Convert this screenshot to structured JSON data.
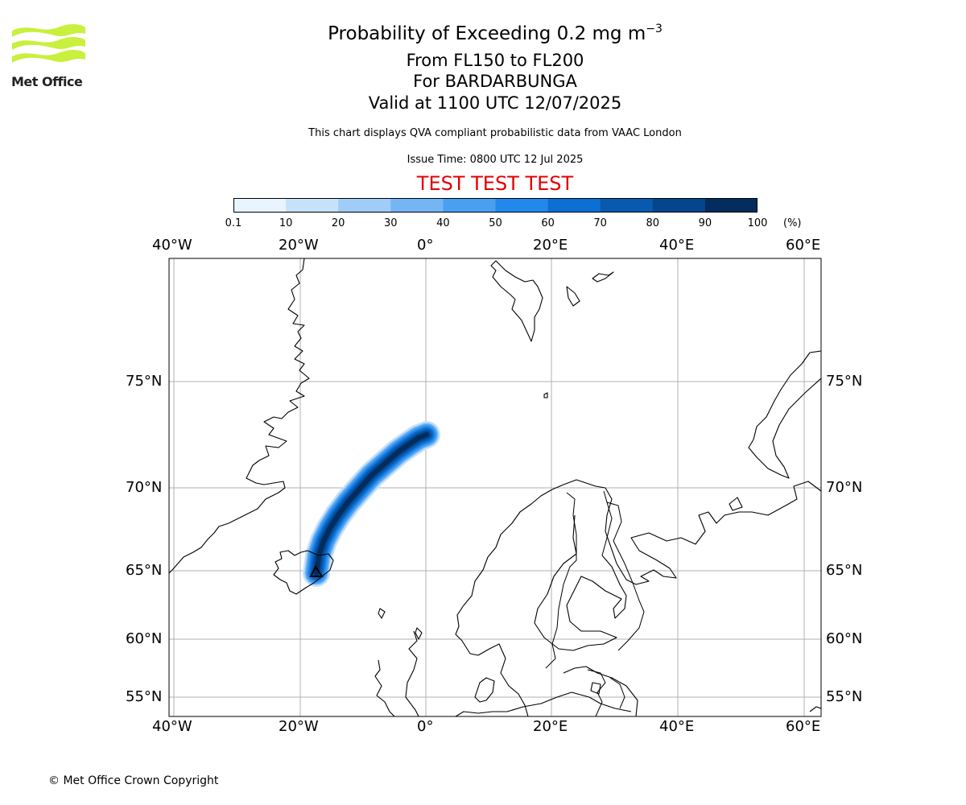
{
  "logo": {
    "text": "Met Office",
    "color": "#c8f03c"
  },
  "title": {
    "main": "Probability of Exceeding 0.2 mg m",
    "main_exponent": "−3",
    "level": "From FL150 to FL200",
    "volcano": "For BARDARBUNGA",
    "valid": "Valid at 1100 UTC 12/07/2025"
  },
  "subtitle": "This chart displays QVA compliant probabilistic data from VAAC London",
  "issue_time": "Issue Time: 0800 UTC 12 Jul 2025",
  "test_banner": "TEST TEST TEST",
  "colorbar": {
    "ticks": [
      "0.1",
      "10",
      "20",
      "30",
      "40",
      "50",
      "60",
      "70",
      "80",
      "90",
      "100"
    ],
    "unit": "(%)",
    "colors": [
      "#e8f4ff",
      "#c6e2fb",
      "#9fcdf7",
      "#74b6f4",
      "#4aa0f0",
      "#2388ec",
      "#0c6fd3",
      "#075ab0",
      "#04468e",
      "#022d5e"
    ]
  },
  "map": {
    "lon_labels": [
      "40°W",
      "20°W",
      "0°",
      "20°E",
      "40°E",
      "60°E"
    ],
    "lat_labels": [
      "75°N",
      "70°N",
      "65°N",
      "60°N",
      "55°N"
    ],
    "grid": true,
    "coastline_color": "#000000",
    "gridline_color": "#b0b0b0",
    "source_marker": "black-triangle-outline"
  },
  "copyright": "© Met Office Crown Copyright"
}
